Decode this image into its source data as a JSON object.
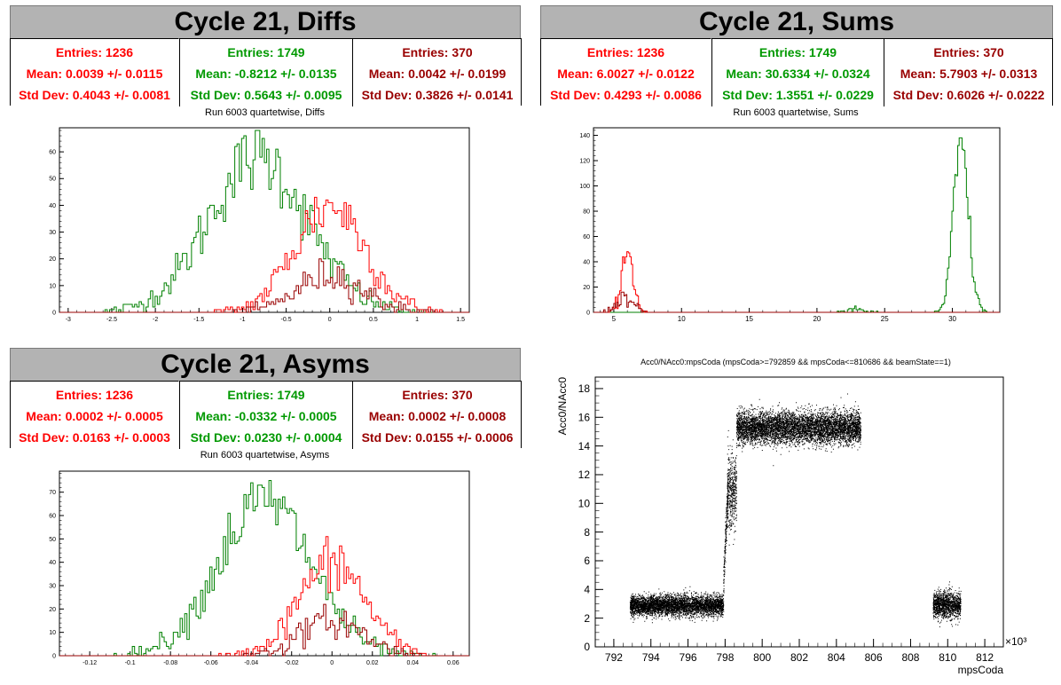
{
  "colors": {
    "red": "#ff0000",
    "green": "#008000",
    "darkred": "#990000",
    "black": "#000000"
  },
  "panels": [
    {
      "title": "Cycle 21, Diffs",
      "stats": [
        {
          "entries": "Entries: 1236",
          "mean": "Mean: 0.0039 +/- 0.0115",
          "std": "Std Dev: 0.4043 +/- 0.0081",
          "color": "#ff0000"
        },
        {
          "entries": "Entries: 1749",
          "mean": "Mean: -0.8212 +/- 0.0135",
          "std": "Std Dev: 0.5643 +/- 0.0095",
          "color": "#009900"
        },
        {
          "entries": "Entries: 370",
          "mean": "Mean: 0.0042 +/- 0.0199",
          "std": "Std Dev: 0.3826 +/- 0.0141",
          "color": "#990000"
        }
      ],
      "plot_title": "Run 6003 quartetwise, Diffs"
    },
    {
      "title": "Cycle 21, Sums",
      "stats": [
        {
          "entries": "Entries: 1236",
          "mean": "Mean: 6.0027 +/- 0.0122",
          "std": "Std Dev: 0.4293 +/- 0.0086",
          "color": "#ff0000"
        },
        {
          "entries": "Entries: 1749",
          "mean": "Mean: 30.6334 +/- 0.0324",
          "std": "Std Dev: 1.3551 +/- 0.0229",
          "color": "#009900"
        },
        {
          "entries": "Entries: 370",
          "mean": "Mean: 5.7903 +/- 0.0313",
          "std": "Std Dev: 0.6026 +/- 0.0222",
          "color": "#990000"
        }
      ],
      "plot_title": "Run 6003 quartetwise, Sums"
    },
    {
      "title": "Cycle 21, Asyms",
      "stats": [
        {
          "entries": "Entries: 1236",
          "mean": "Mean: 0.0002 +/- 0.0005",
          "std": "Std Dev: 0.0163 +/- 0.0003",
          "color": "#ff0000"
        },
        {
          "entries": "Entries: 1749",
          "mean": "Mean: -0.0332 +/- 0.0005",
          "std": "Std Dev: 0.0230 +/- 0.0004",
          "color": "#009900"
        },
        {
          "entries": "Entries: 370",
          "mean": "Mean: 0.0002 +/- 0.0008",
          "std": "Std Dev: 0.0155 +/- 0.0006",
          "color": "#990000"
        }
      ],
      "plot_title": "Run 6003 quartetwise, Asyms"
    }
  ],
  "chart_data": [
    {
      "type": "histogram",
      "title": "Run 6003 quartetwise, Diffs",
      "xlim": [
        -3.1,
        1.6
      ],
      "ylim": [
        0,
        69
      ],
      "xticks": [
        -3,
        -2.5,
        -2,
        -1.5,
        -1,
        -0.5,
        0,
        0.5,
        1,
        1.5
      ],
      "xtick_labels": [
        "-3",
        "-2.5",
        "-2",
        "-1.5",
        "-1",
        "-0.5",
        "0",
        "0.5",
        "1",
        "1.5"
      ],
      "yticks": [
        0,
        10,
        20,
        30,
        40,
        50,
        60
      ],
      "ytick_labels": [
        "0",
        "10",
        "20",
        "30",
        "40",
        "50",
        "60"
      ],
      "series": [
        {
          "color": "#008000",
          "gauss": {
            "mean": -0.8212,
            "sigma": 0.5643,
            "peak": 58
          }
        },
        {
          "color": "#ff0000",
          "gauss": {
            "mean": 0.0039,
            "sigma": 0.4043,
            "peak": 40
          }
        },
        {
          "color": "#990000",
          "gauss": {
            "mean": 0.0042,
            "sigma": 0.3826,
            "peak": 14
          }
        }
      ]
    },
    {
      "type": "histogram",
      "title": "Run 6003 quartetwise, Sums",
      "xlim": [
        3.5,
        33.5
      ],
      "ylim": [
        0,
        146
      ],
      "xticks": [
        5,
        10,
        15,
        20,
        25,
        30
      ],
      "xtick_labels": [
        "5",
        "10",
        "15",
        "20",
        "25",
        "30"
      ],
      "yticks": [
        0,
        20,
        40,
        60,
        80,
        100,
        120,
        140
      ],
      "ytick_labels": [
        "0",
        "20",
        "40",
        "60",
        "80",
        "100",
        "120",
        "140"
      ],
      "series": [
        {
          "color": "#008000",
          "gauss": {
            "mean": 30.6334,
            "sigma": 0.55,
            "peak": 132
          },
          "extra": {
            "mean": 22.8,
            "sigma": 0.6,
            "peak": 3
          }
        },
        {
          "color": "#ff0000",
          "gauss": {
            "mean": 6.0027,
            "sigma": 0.4293,
            "peak": 50
          }
        },
        {
          "color": "#990000",
          "gauss": {
            "mean": 5.7903,
            "sigma": 0.6026,
            "peak": 12
          }
        }
      ]
    },
    {
      "type": "histogram",
      "title": "Run 6003 quartetwise, Asyms",
      "xlim": [
        -0.135,
        0.068
      ],
      "ylim": [
        0,
        79
      ],
      "xticks": [
        -0.12,
        -0.1,
        -0.08,
        -0.06,
        -0.04,
        -0.02,
        0,
        0.02,
        0.04,
        0.06
      ],
      "xtick_labels": [
        "-0.12",
        "-0.1",
        "-0.08",
        "-0.06",
        "-0.04",
        "-0.02",
        "0",
        "0.02",
        "0.04",
        "0.06"
      ],
      "yticks": [
        0,
        10,
        20,
        30,
        40,
        50,
        60,
        70
      ],
      "ytick_labels": [
        "0",
        "10",
        "20",
        "30",
        "40",
        "50",
        "60",
        "70"
      ],
      "series": [
        {
          "color": "#008000",
          "gauss": {
            "mean": -0.0332,
            "sigma": 0.023,
            "peak": 66
          }
        },
        {
          "color": "#ff0000",
          "gauss": {
            "mean": 0.0002,
            "sigma": 0.0163,
            "peak": 40
          }
        },
        {
          "color": "#990000",
          "gauss": {
            "mean": 0.0002,
            "sigma": 0.0155,
            "peak": 15
          }
        }
      ]
    },
    {
      "type": "scatter",
      "title": "Acc0/NAcc0:mpsCoda (mpsCoda>=792859 && mpsCoda<=810686 && beamState==1)",
      "xlabel": "mpsCoda",
      "ylabel": "Acc0/NAcc0",
      "x_multiplier": "×10³",
      "xlim": [
        791,
        813
      ],
      "ylim": [
        0,
        18.8
      ],
      "xticks": [
        792,
        794,
        796,
        798,
        800,
        802,
        804,
        806,
        808,
        810,
        812
      ],
      "xtick_labels": [
        "792",
        "794",
        "796",
        "798",
        "800",
        "802",
        "804",
        "806",
        "808",
        "810",
        "812"
      ],
      "yticks": [
        0,
        2,
        4,
        6,
        8,
        10,
        12,
        14,
        16,
        18
      ],
      "ytick_labels": [
        "0",
        "2",
        "4",
        "6",
        "8",
        "10",
        "12",
        "14",
        "16",
        "18"
      ],
      "clusters": [
        {
          "x": [
            792.86,
            797.9
          ],
          "y_center": 2.9,
          "y_spread": 0.35
        },
        {
          "x": [
            797.9,
            798.15
          ],
          "y_center": 8.2,
          "y_spread": 2.0
        },
        {
          "x": [
            798.1,
            798.6
          ],
          "y_center": 10.8,
          "y_spread": 1.3
        },
        {
          "x": [
            798.6,
            805.3
          ],
          "y_center": 15.3,
          "y_spread": 0.55
        },
        {
          "x": [
            809.2,
            810.69
          ],
          "y_center": 2.95,
          "y_spread": 0.45
        }
      ]
    }
  ]
}
